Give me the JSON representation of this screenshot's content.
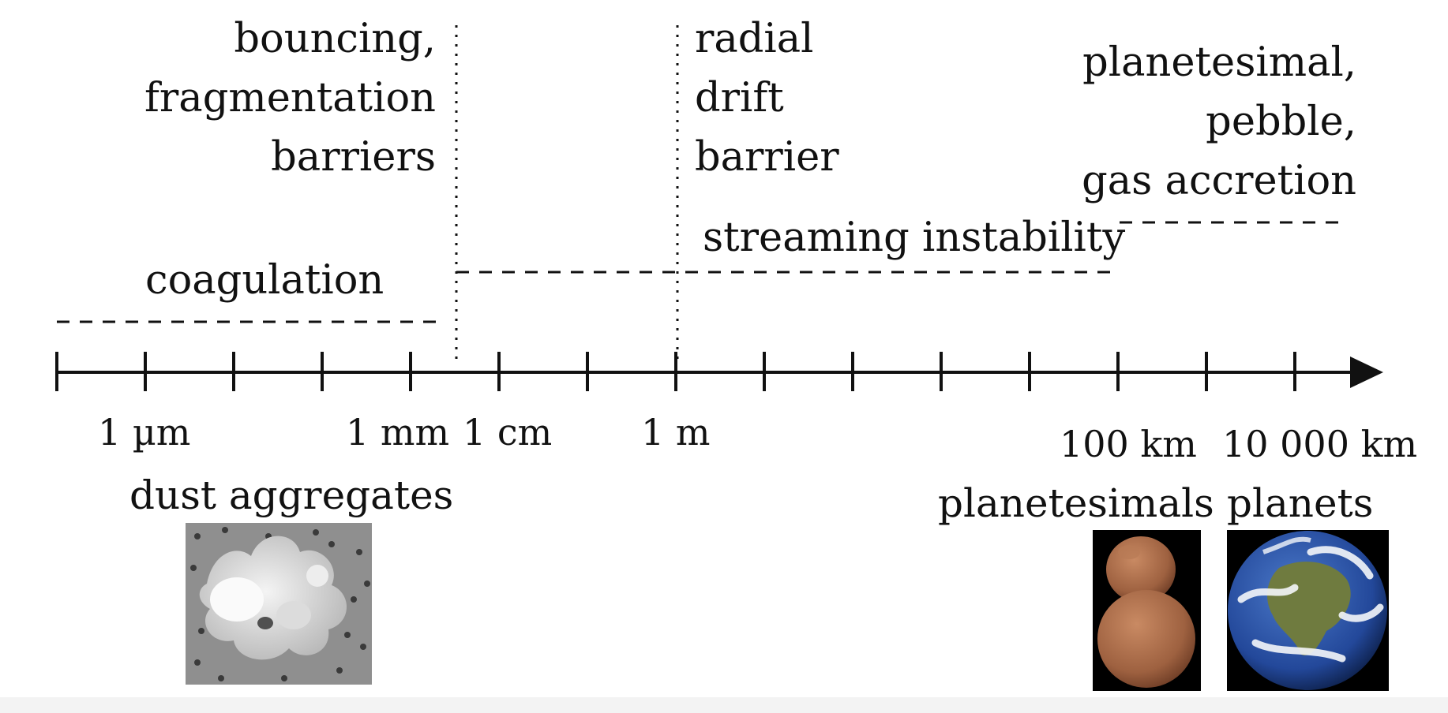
{
  "barriers": {
    "bouncing": [
      "bouncing,",
      "fragmentation",
      "barriers"
    ],
    "radial_drift": [
      "radial",
      "drift",
      "barrier"
    ]
  },
  "processes": {
    "coagulation": "coagulation",
    "streaming": "streaming instability",
    "accretion": [
      "planetesimal,",
      "pebble,",
      "gas accretion"
    ]
  },
  "scale": {
    "labels": {
      "um": "1 µm",
      "mm": "1 mm",
      "cm": "1 cm",
      "m": "1 m",
      "km100": "100 km",
      "km10000": "10 000 km"
    },
    "tick_count": 15
  },
  "objects": {
    "dust": "dust aggregates",
    "planetesimals": "planetesimals",
    "planets": "planets"
  },
  "icons": {
    "dust": "dust-aggregate-photo-icon",
    "planetesimal": "planetesimal-photo-icon",
    "planet": "earth-photo-icon"
  },
  "colors": {
    "line": "#111111",
    "dust_bg": "#8c8c8c",
    "dust_grain": "#e8e8e8",
    "planetesimal": "#a86a4a",
    "ocean": "#2a55a8",
    "land": "#6f7b3f",
    "cloud": "#f4f6fa"
  }
}
